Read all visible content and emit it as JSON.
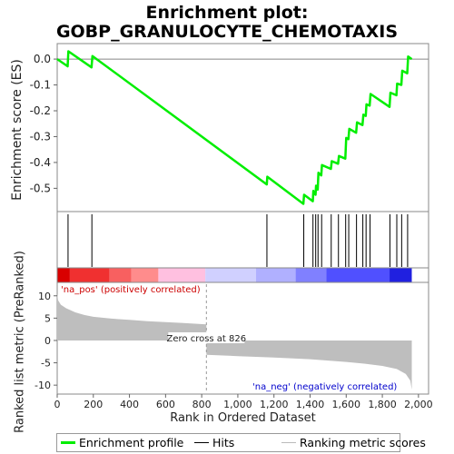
{
  "title_line1": "Enrichment plot:",
  "title_line2": "GOBP_GRANULOCYTE_CHEMOTAXIS",
  "colors": {
    "es_line": "#00ee00",
    "hits": "#000000",
    "metric_fill": "#bebebe",
    "pos_label": "#cc0000",
    "neg_label": "#0000cc"
  },
  "chart_data": [
    {
      "type": "line",
      "name": "enrichment-profile",
      "ylabel": "Enrichment score (ES)",
      "xlim": [
        0,
        2056
      ],
      "ylim": [
        -0.59,
        0.06
      ],
      "yticks": [
        0.0,
        -0.1,
        -0.2,
        -0.3,
        -0.4,
        -0.5
      ],
      "ytick_labels": [
        "0.0",
        "-0.1",
        "-0.2",
        "-0.3",
        "-0.4",
        "-0.5"
      ],
      "zero_line": true,
      "points": [
        [
          0,
          0.0
        ],
        [
          58,
          -0.028
        ],
        [
          62,
          0.03
        ],
        [
          190,
          -0.032
        ],
        [
          195,
          0.012
        ],
        [
          1160,
          -0.485
        ],
        [
          1163,
          -0.455
        ],
        [
          1363,
          -0.56
        ],
        [
          1367,
          -0.525
        ],
        [
          1415,
          -0.55
        ],
        [
          1418,
          -0.51
        ],
        [
          1430,
          -0.525
        ],
        [
          1433,
          -0.49
        ],
        [
          1442,
          -0.505
        ],
        [
          1446,
          -0.44
        ],
        [
          1462,
          -0.45
        ],
        [
          1466,
          -0.41
        ],
        [
          1515,
          -0.425
        ],
        [
          1520,
          -0.395
        ],
        [
          1555,
          -0.405
        ],
        [
          1560,
          -0.375
        ],
        [
          1595,
          -0.385
        ],
        [
          1600,
          -0.305
        ],
        [
          1612,
          -0.31
        ],
        [
          1617,
          -0.27
        ],
        [
          1655,
          -0.285
        ],
        [
          1660,
          -0.245
        ],
        [
          1690,
          -0.255
        ],
        [
          1695,
          -0.215
        ],
        [
          1708,
          -0.22
        ],
        [
          1712,
          -0.175
        ],
        [
          1730,
          -0.18
        ],
        [
          1735,
          -0.135
        ],
        [
          1840,
          -0.185
        ],
        [
          1845,
          -0.13
        ],
        [
          1878,
          -0.14
        ],
        [
          1882,
          -0.095
        ],
        [
          1905,
          -0.1
        ],
        [
          1910,
          -0.045
        ],
        [
          1938,
          -0.055
        ],
        [
          1943,
          0.01
        ],
        [
          1963,
          0.0
        ]
      ]
    },
    {
      "type": "bar",
      "name": "hits",
      "x": [
        60,
        192,
        1161,
        1365,
        1416,
        1431,
        1444,
        1464,
        1517,
        1557,
        1597,
        1614,
        1657,
        1692,
        1710,
        1732,
        1842,
        1880,
        1907,
        1940
      ]
    },
    {
      "type": "heatmap",
      "name": "rank-color-bar",
      "colors": [
        "#d90000",
        "#f03030",
        "#f86060",
        "#ff8c8c",
        "#ffc0e0",
        "#d0d0ff",
        "#b0b0ff",
        "#8080ff",
        "#5050ff",
        "#2020e0",
        "#0000c0"
      ],
      "bounds": [
        0,
        70,
        290,
        410,
        560,
        820,
        1100,
        1320,
        1490,
        1840,
        1963
      ]
    },
    {
      "type": "area",
      "name": "ranked-list-metric",
      "ylabel": "Ranked list metric (PreRanked)",
      "xlabel": "Rank in Ordered Dataset",
      "xlim": [
        0,
        2056
      ],
      "ylim": [
        -12,
        13
      ],
      "xticks": [
        0,
        200,
        400,
        600,
        800,
        1000,
        1200,
        1400,
        1600,
        1800,
        2000
      ],
      "xtick_labels": [
        "0",
        "200",
        "400",
        "600",
        "800",
        "1,000",
        "1,200",
        "1,400",
        "1,600",
        "1,800",
        "2,000"
      ],
      "yticks": [
        10,
        5,
        0,
        -5,
        -10
      ],
      "ytick_labels": [
        "10",
        "5",
        "0",
        "-5",
        "-10"
      ],
      "points": [
        [
          0,
          10.5
        ],
        [
          5,
          9.0
        ],
        [
          20,
          8.0
        ],
        [
          50,
          7.2
        ],
        [
          100,
          6.3
        ],
        [
          150,
          5.7
        ],
        [
          200,
          5.3
        ],
        [
          300,
          4.9
        ],
        [
          400,
          4.6
        ],
        [
          500,
          4.3
        ],
        [
          600,
          4.1
        ],
        [
          700,
          3.9
        ],
        [
          826,
          3.6
        ],
        [
          826,
          -3.2
        ],
        [
          1000,
          -3.5
        ],
        [
          1200,
          -3.8
        ],
        [
          1400,
          -4.2
        ],
        [
          1600,
          -4.8
        ],
        [
          1700,
          -5.2
        ],
        [
          1800,
          -5.7
        ],
        [
          1880,
          -6.4
        ],
        [
          1930,
          -7.5
        ],
        [
          1955,
          -9.0
        ],
        [
          1963,
          -11.0
        ]
      ],
      "zero_cross_rank": 826,
      "zero_cross_label": "Zero cross at 826",
      "pos_label": "'na_pos' (positively correlated)",
      "neg_label": "'na_neg' (negatively correlated)"
    }
  ],
  "legend": {
    "items": [
      {
        "label": "Enrichment profile",
        "style": "green-thick"
      },
      {
        "label": "Hits",
        "style": "black-thin"
      },
      {
        "label": "Ranking metric scores",
        "style": "gray-thin"
      }
    ]
  }
}
